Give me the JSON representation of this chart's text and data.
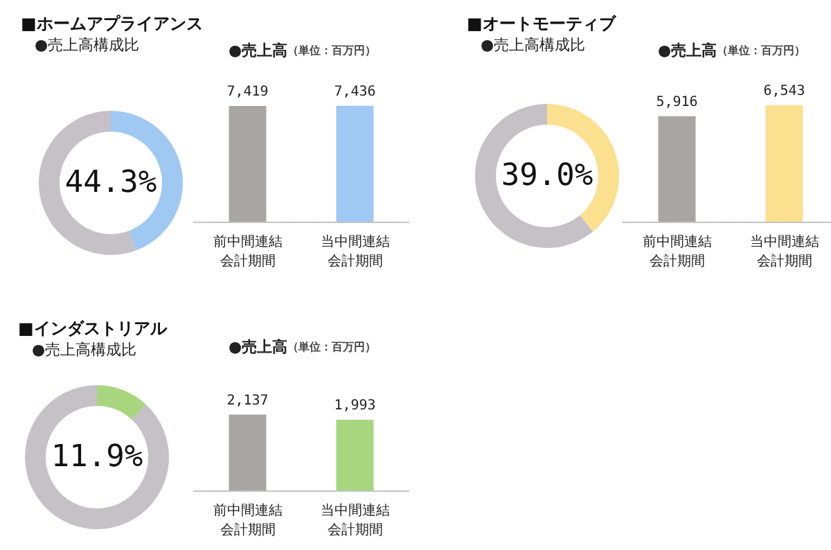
{
  "chart_data": [
    {
      "type": "donut",
      "title": "■ホームアプライアンス",
      "subtitle": "●売上高構成比",
      "categories": [
        null,
        null
      ],
      "values": [
        44.3,
        55.7
      ],
      "colors": [
        "#9fc8f2",
        "#c5c1c6"
      ],
      "annotations": [
        "44.3%"
      ]
    },
    {
      "type": "bar",
      "title": "●売上高",
      "subtitle": "（単位：百万円）",
      "categories": [
        "前中間連結会計期間",
        "当中間連結会計期間"
      ],
      "values": [
        7419,
        7436
      ],
      "colors": [
        "#aaa5a5",
        "#9fc8f2"
      ],
      "value_labels": [
        "7,419",
        "7,436"
      ],
      "tick_labels": "x"
    },
    {
      "type": "donut",
      "title": "■オートモーティブ",
      "subtitle": "●売上高構成比",
      "categories": [
        null,
        null
      ],
      "values": [
        39.0,
        61.0
      ],
      "colors": [
        "#fbe08f",
        "#c5c1c6"
      ],
      "annotations": [
        "39.0%"
      ]
    },
    {
      "type": "bar",
      "title": "●売上高",
      "subtitle": "（単位：百万円）",
      "categories": [
        "前中間連結会計期間",
        "当中間連結会計期間"
      ],
      "values": [
        5916,
        6543
      ],
      "colors": [
        "#aaa5a5",
        "#fbe08f"
      ],
      "value_labels": [
        "5,916",
        "6,543"
      ],
      "tick_labels": "x"
    },
    {
      "type": "donut",
      "title": "■インダストリアル",
      "subtitle": "●売上高構成比",
      "categories": [
        null,
        null
      ],
      "values": [
        11.9,
        88.1
      ],
      "colors": [
        "#a8d67f",
        "#c5c1c6"
      ],
      "annotations": [
        "11.9%"
      ]
    },
    {
      "type": "bar",
      "title": "●売上高",
      "subtitle": "（単位：百万円）",
      "categories": [
        "前中間連結会計期間",
        "当中間連結会計期間"
      ],
      "values": [
        2137,
        1993
      ],
      "colors": [
        "#aaa5a5",
        "#a8d67f"
      ],
      "value_labels": [
        "2,137",
        "1,993"
      ],
      "tick_labels": "x"
    }
  ]
}
